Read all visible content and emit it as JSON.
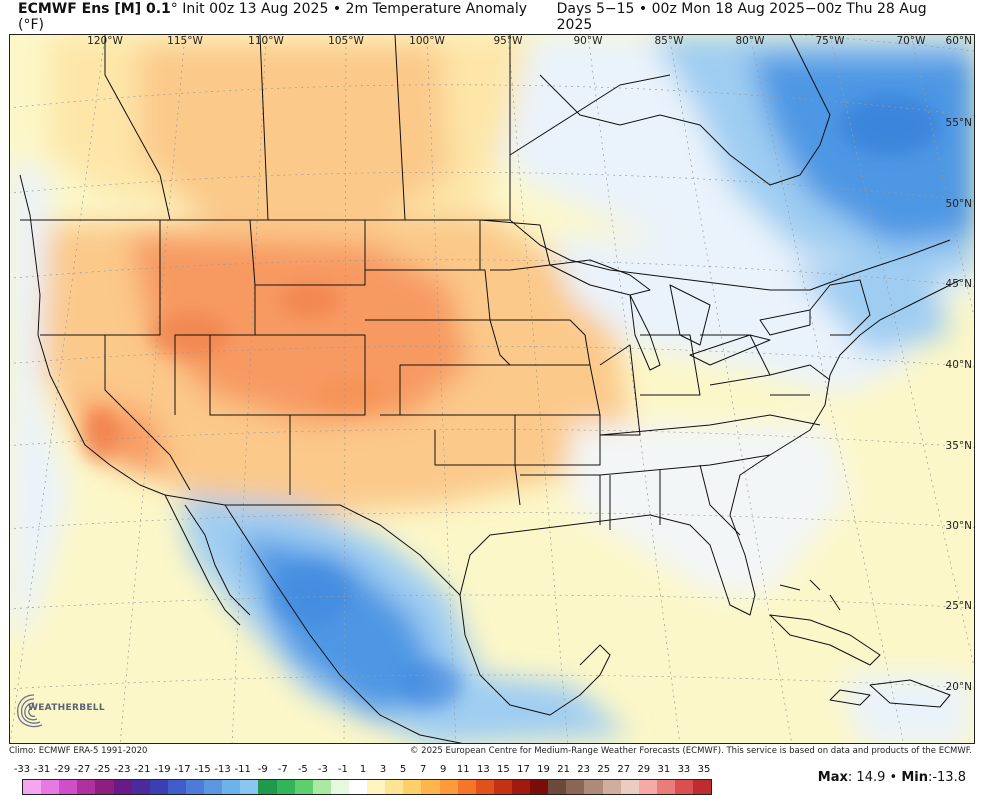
{
  "header": {
    "title_main": "ECMWF Ens [M] 0.1",
    "title_rest": "° Init 00z 13 Aug 2025 • 2m Temperature Anomaly (°F)",
    "valid_range": "Days 5−15 • 00z Mon 18 Aug 2025−00z Thu 28 Aug 2025"
  },
  "map": {
    "longitude_labels": [
      "120°W",
      "115°W",
      "110°W",
      "105°W",
      "100°W",
      "95°W",
      "90°W",
      "85°W",
      "80°W",
      "75°W",
      "70°W"
    ],
    "latitude_labels": [
      "60°N",
      "55°N",
      "50°N",
      "45°N",
      "40°N",
      "35°N",
      "30°N",
      "25°N",
      "20°N"
    ],
    "colors": {
      "ocean_neutral": "#fcf7c8",
      "warm_light": "#fde6a8",
      "warm_mid": "#fbc98a",
      "warm_strong": "#f79a62",
      "cool_light": "#eaf3fb",
      "cool_mid": "#9fcdf2",
      "cool_strong": "#4e97e4"
    }
  },
  "logo": {
    "text": "WEATHERBELL",
    "icon": "weatherbell-logo-icon"
  },
  "footer": {
    "climo": "Climo: ECMWF ERA-5 1991-2020",
    "copyright": "© 2025 European Centre for Medium-Range Weather Forecasts (ECMWF). This service is based on data and products of the ECMWF."
  },
  "legend": {
    "ticks": [
      "-33",
      "-31",
      "-29",
      "-27",
      "-25",
      "-23",
      "-21",
      "-19",
      "-17",
      "-15",
      "-13",
      "-11",
      "-9",
      "-7",
      "-5",
      "-3",
      "-1",
      "1",
      "3",
      "5",
      "7",
      "9",
      "11",
      "13",
      "15",
      "17",
      "19",
      "21",
      "23",
      "25",
      "27",
      "29",
      "31",
      "33",
      "35"
    ],
    "colors": [
      "#f4a6f0",
      "#e77ae0",
      "#cf4fc9",
      "#b0309f",
      "#8e1e80",
      "#6a1a86",
      "#4b2a9c",
      "#3a3fb2",
      "#3f5cc8",
      "#4d7bd8",
      "#5c97e2",
      "#6eb2ea",
      "#8ac7f0",
      "#1f9a4c",
      "#31b45a",
      "#5ecf6c",
      "#a9e9a1",
      "#e6f8df",
      "#ffffff",
      "#fff4c2",
      "#ffe493",
      "#ffcf6b",
      "#ffb54d",
      "#fd9a3a",
      "#f4762a",
      "#e0521c",
      "#c43214",
      "#a11a10",
      "#7a0d0a",
      "#6b4a3c",
      "#8b6656",
      "#ad8a7a",
      "#cfaea0",
      "#eaccc2",
      "#f6aaa7",
      "#ea7c7a",
      "#d9504f",
      "#bd2c2e"
    ],
    "max_label": "Max",
    "max_value": ": 14.9",
    "sep": " • ",
    "min_label": "Min",
    "min_value": ":-13.8"
  }
}
